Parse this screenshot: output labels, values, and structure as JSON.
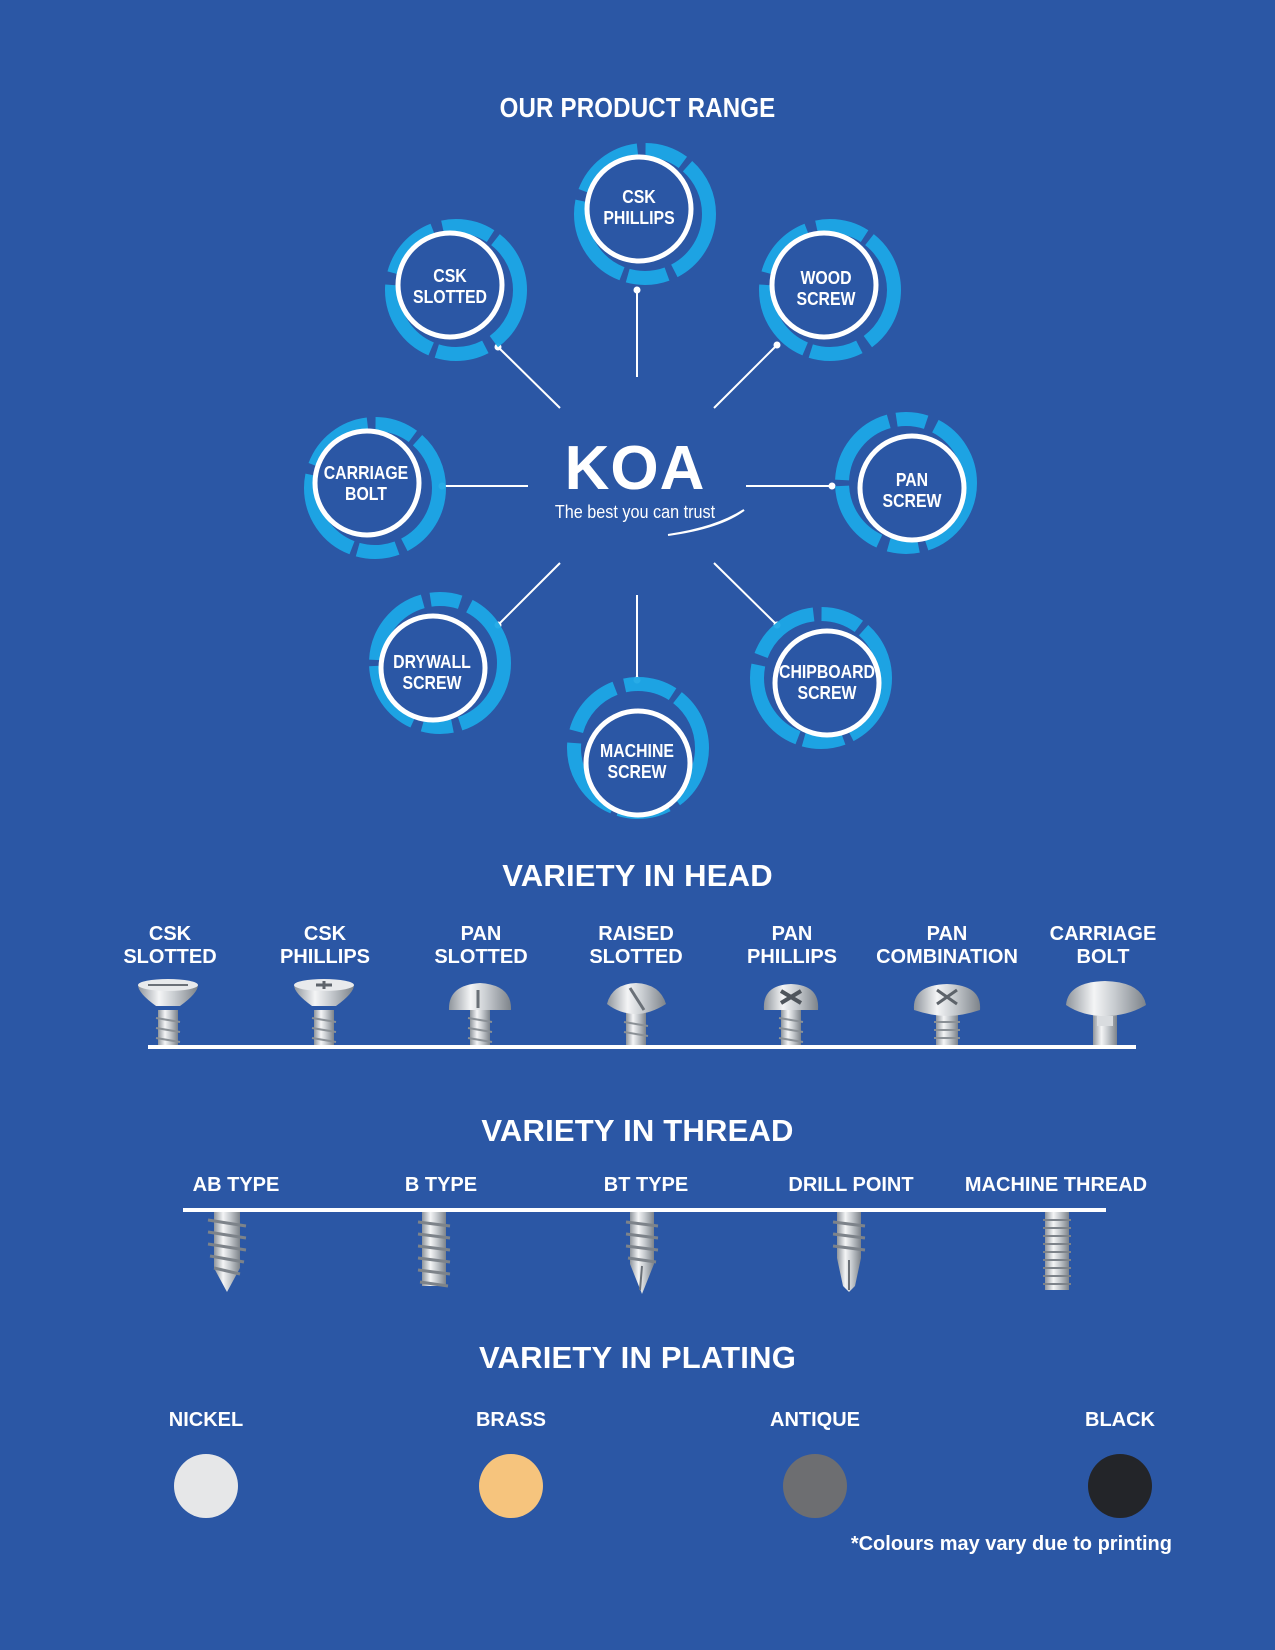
{
  "range": {
    "title": "OUR PRODUCT RANGE",
    "brand": {
      "name": "KOA",
      "tagline": "The best you can trust"
    },
    "products": [
      {
        "line1": "CSK",
        "line2": "PHILLIPS"
      },
      {
        "line1": "WOOD",
        "line2": "SCREW"
      },
      {
        "line1": "PAN",
        "line2": "SCREW"
      },
      {
        "line1": "CHIPBOARD",
        "line2": "SCREW"
      },
      {
        "line1": "MACHINE",
        "line2": "SCREW"
      },
      {
        "line1": "DRYWALL",
        "line2": "SCREW"
      },
      {
        "line1": "CARRIAGE",
        "line2": "BOLT"
      },
      {
        "line1": "CSK",
        "line2": "SLOTTED"
      }
    ]
  },
  "head": {
    "title": "VARIETY IN HEAD",
    "items": [
      {
        "line1": "CSK",
        "line2": "SLOTTED"
      },
      {
        "line1": "CSK",
        "line2": "PHILLIPS"
      },
      {
        "line1": "PAN",
        "line2": "SLOTTED"
      },
      {
        "line1": "RAISED",
        "line2": "SLOTTED"
      },
      {
        "line1": "PAN",
        "line2": "PHILLIPS"
      },
      {
        "line1": "PAN",
        "line2": "COMBINATION"
      },
      {
        "line1": "CARRIAGE",
        "line2": "BOLT"
      }
    ]
  },
  "thread": {
    "title": "VARIETY IN THREAD",
    "items": [
      "AB TYPE",
      "B TYPE",
      "BT TYPE",
      "DRILL POINT",
      "MACHINE THREAD"
    ]
  },
  "plating": {
    "title": "VARIETY IN PLATING",
    "items": [
      {
        "label": "NICKEL",
        "color": "#e6e7e8"
      },
      {
        "label": "BRASS",
        "color": "#f6c47d"
      },
      {
        "label": "ANTIQUE",
        "color": "#6d6e71"
      },
      {
        "label": "BLACK",
        "color": "#232529"
      }
    ],
    "note": "*Colours may vary due to printing"
  },
  "colors": {
    "background": "#2b57a5",
    "accent": "#1ca8e6",
    "text": "#ffffff"
  }
}
